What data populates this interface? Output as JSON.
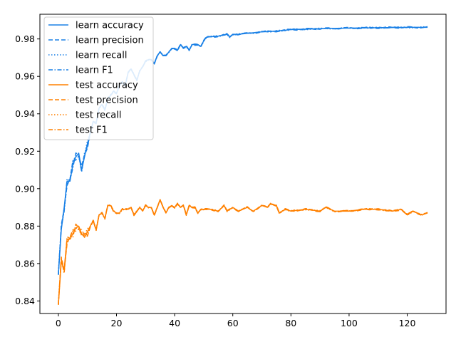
{
  "chart_data": {
    "type": "line",
    "title": "",
    "xlabel": "",
    "ylabel": "",
    "xlim": [
      -6.35,
      133.35
    ],
    "ylim": [
      0.8333,
      0.9932
    ],
    "xticks": [
      0,
      20,
      40,
      60,
      80,
      100,
      120
    ],
    "yticks": [
      0.84,
      0.86,
      0.88,
      0.9,
      0.92,
      0.94,
      0.96,
      0.98
    ],
    "grid": false,
    "legend_position": "upper-left",
    "colors": {
      "learn": "#1a80e6",
      "test": "#ff8000"
    },
    "learn_anchors": [
      [
        0,
        0.854
      ],
      [
        1,
        0.878
      ],
      [
        2,
        0.89
      ],
      [
        3,
        0.904
      ],
      [
        4,
        0.904
      ],
      [
        5,
        0.913
      ],
      [
        6,
        0.917
      ],
      [
        7,
        0.919
      ],
      [
        8,
        0.91
      ],
      [
        9,
        0.917
      ],
      [
        10,
        0.924
      ],
      [
        11,
        0.93
      ],
      [
        12,
        0.936
      ],
      [
        13,
        0.935
      ],
      [
        14,
        0.943
      ],
      [
        15,
        0.945
      ],
      [
        16,
        0.942
      ],
      [
        17,
        0.948
      ],
      [
        18,
        0.95
      ],
      [
        19,
        0.952
      ],
      [
        20,
        0.951
      ],
      [
        21,
        0.955
      ],
      [
        22,
        0.957
      ],
      [
        23,
        0.955
      ],
      [
        24,
        0.962
      ],
      [
        25,
        0.964
      ],
      [
        26,
        0.961
      ],
      [
        27,
        0.958
      ],
      [
        28,
        0.963
      ],
      [
        29,
        0.965
      ],
      [
        30,
        0.968
      ],
      [
        31,
        0.969
      ],
      [
        32,
        0.969
      ],
      [
        33,
        0.967
      ],
      [
        34,
        0.971
      ],
      [
        35,
        0.973
      ],
      [
        36,
        0.971
      ],
      [
        37,
        0.971
      ],
      [
        38,
        0.973
      ],
      [
        39,
        0.975
      ],
      [
        40,
        0.975
      ],
      [
        41,
        0.974
      ],
      [
        42,
        0.977
      ],
      [
        43,
        0.975
      ],
      [
        44,
        0.976
      ],
      [
        45,
        0.974
      ],
      [
        46,
        0.977
      ],
      [
        48,
        0.977
      ],
      [
        49,
        0.976
      ],
      [
        50,
        0.979
      ],
      [
        51,
        0.981
      ],
      [
        55,
        0.9815
      ],
      [
        58,
        0.9825
      ],
      [
        59,
        0.981
      ],
      [
        60,
        0.9825
      ],
      [
        62,
        0.9825
      ],
      [
        65,
        0.983
      ],
      [
        70,
        0.9838
      ],
      [
        75,
        0.9842
      ],
      [
        80,
        0.985
      ],
      [
        90,
        0.9855
      ],
      [
        100,
        0.9858
      ],
      [
        110,
        0.986
      ],
      [
        120,
        0.9862
      ],
      [
        127,
        0.9862
      ]
    ],
    "test_anchors": [
      [
        0,
        0.838
      ],
      [
        1,
        0.861
      ],
      [
        2,
        0.857
      ],
      [
        3,
        0.873
      ],
      [
        4,
        0.873
      ],
      [
        5,
        0.876
      ],
      [
        6,
        0.879
      ],
      [
        7,
        0.88
      ],
      [
        8,
        0.876
      ],
      [
        9,
        0.874
      ],
      [
        10,
        0.877
      ],
      [
        11,
        0.88
      ],
      [
        12,
        0.883
      ],
      [
        13,
        0.878
      ],
      [
        14,
        0.886
      ],
      [
        15,
        0.887
      ],
      [
        16,
        0.884
      ],
      [
        17,
        0.891
      ],
      [
        18,
        0.891
      ],
      [
        19,
        0.888
      ],
      [
        20,
        0.887
      ],
      [
        21,
        0.887
      ],
      [
        22,
        0.889
      ],
      [
        23,
        0.889
      ],
      [
        24,
        0.889
      ],
      [
        25,
        0.89
      ],
      [
        26,
        0.886
      ],
      [
        27,
        0.888
      ],
      [
        28,
        0.89
      ],
      [
        29,
        0.888
      ],
      [
        30,
        0.891
      ],
      [
        31,
        0.89
      ],
      [
        32,
        0.89
      ],
      [
        33,
        0.886
      ],
      [
        34,
        0.89
      ],
      [
        35,
        0.894
      ],
      [
        36,
        0.89
      ],
      [
        37,
        0.887
      ],
      [
        38,
        0.89
      ],
      [
        39,
        0.891
      ],
      [
        40,
        0.89
      ],
      [
        41,
        0.892
      ],
      [
        42,
        0.89
      ],
      [
        43,
        0.891
      ],
      [
        44,
        0.886
      ],
      [
        45,
        0.891
      ],
      [
        46,
        0.89
      ],
      [
        47,
        0.89
      ],
      [
        48,
        0.887
      ],
      [
        49,
        0.889
      ],
      [
        50,
        0.889
      ],
      [
        52,
        0.889
      ],
      [
        55,
        0.888
      ],
      [
        57,
        0.891
      ],
      [
        58,
        0.888
      ],
      [
        60,
        0.89
      ],
      [
        62,
        0.888
      ],
      [
        65,
        0.89
      ],
      [
        67,
        0.888
      ],
      [
        70,
        0.891
      ],
      [
        72,
        0.89
      ],
      [
        73,
        0.892
      ],
      [
        75,
        0.891
      ],
      [
        76,
        0.887
      ],
      [
        78,
        0.889
      ],
      [
        80,
        0.888
      ],
      [
        85,
        0.889
      ],
      [
        90,
        0.888
      ],
      [
        92,
        0.89
      ],
      [
        95,
        0.888
      ],
      [
        100,
        0.888
      ],
      [
        105,
        0.889
      ],
      [
        110,
        0.889
      ],
      [
        115,
        0.888
      ],
      [
        118,
        0.889
      ],
      [
        120,
        0.886
      ],
      [
        122,
        0.888
      ],
      [
        125,
        0.886
      ],
      [
        127,
        0.887
      ]
    ],
    "series": [
      {
        "name": "learn accuracy",
        "group": "learn",
        "style": "solid"
      },
      {
        "name": "learn precision",
        "group": "learn",
        "style": "dashed"
      },
      {
        "name": "learn recall",
        "group": "learn",
        "style": "dotted"
      },
      {
        "name": "learn F1",
        "group": "learn",
        "style": "dashdot"
      },
      {
        "name": "test accuracy",
        "group": "test",
        "style": "solid"
      },
      {
        "name": "test precision",
        "group": "test",
        "style": "dashed"
      },
      {
        "name": "test recall",
        "group": "test",
        "style": "dotted"
      },
      {
        "name": "test F1",
        "group": "test",
        "style": "dashdot"
      }
    ]
  }
}
